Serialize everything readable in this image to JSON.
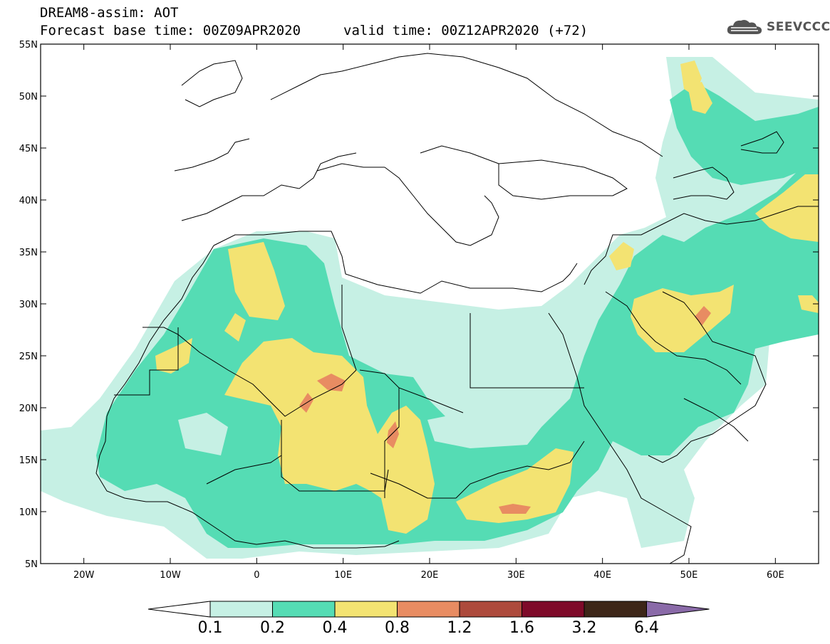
{
  "header": {
    "title": "DREAM8-assim: AOT",
    "base_time": "Forecast base time: 00Z09APR2020",
    "valid_time": "valid time: 00Z12APR2020 (+72)"
  },
  "logo": {
    "text": "SEEVCCC",
    "icon": "cloud-icon"
  },
  "map": {
    "lon_range": [
      -25,
      65
    ],
    "lat_range": [
      5,
      55
    ],
    "lat_ticks": [
      "5N",
      "10N",
      "15N",
      "20N",
      "25N",
      "30N",
      "35N",
      "40N",
      "45N",
      "50N",
      "55N"
    ],
    "lon_ticks": [
      "20W",
      "10W",
      "0",
      "10E",
      "20E",
      "30E",
      "40E",
      "50E",
      "60E"
    ],
    "background": "#ffffff",
    "coastline_color": "#000000"
  },
  "colorbar": {
    "levels": [
      "0.1",
      "0.2",
      "0.4",
      "0.8",
      "1.2",
      "1.6",
      "3.2",
      "6.4"
    ],
    "colors": [
      "#c6f0e4",
      "#55dcb4",
      "#f3e372",
      "#e88c62",
      "#ad4a3c",
      "#7e0a29",
      "#3d2618",
      "#8a6aa8"
    ],
    "under_color": "#ffffff"
  }
}
